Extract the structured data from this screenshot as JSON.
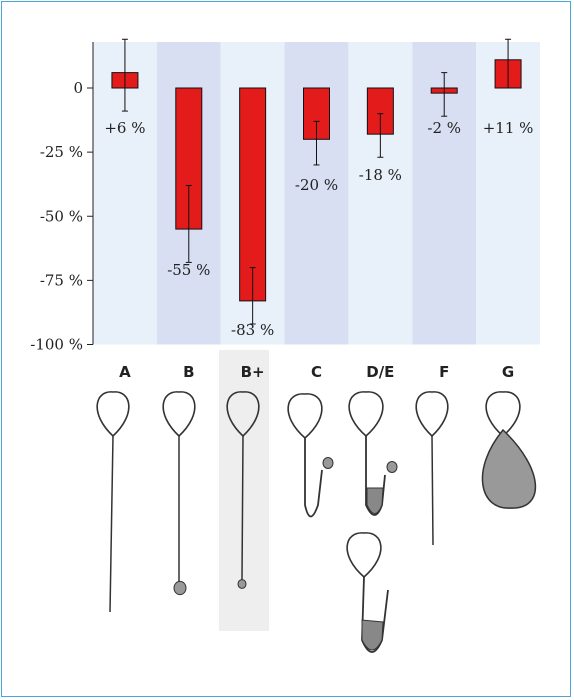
{
  "chart_data": {
    "type": "bar",
    "categories": [
      "A",
      "B",
      "B+",
      "C",
      "D/E",
      "F",
      "G"
    ],
    "values": [
      6,
      -55,
      -83,
      -20,
      -18,
      -2,
      11
    ],
    "data_labels": [
      "+6 %",
      "-55 %",
      "-83 %",
      "-20 %",
      "-18 %",
      "-2 %",
      "+11 %"
    ],
    "error_bars": [
      [
        -9,
        19
      ],
      [
        -68,
        -38
      ],
      [
        -92,
        -70
      ],
      [
        -30,
        -13
      ],
      [
        -27,
        -10
      ],
      [
        -11,
        6
      ],
      [
        0,
        19
      ]
    ],
    "yticks": [
      0,
      -25,
      -50,
      -75,
      -100
    ],
    "ytick_labels": [
      "0",
      "-25 %",
      "-50 %",
      "-75 %",
      "-100 %"
    ],
    "ylim": [
      -100,
      18
    ],
    "grid": false,
    "colors": {
      "bar": "#e31b1b",
      "band_light": "#e8f0fa",
      "band_dark": "#d8dff2",
      "highlight_panel": "#eeeeee",
      "frame": "#4aa6d6"
    }
  }
}
